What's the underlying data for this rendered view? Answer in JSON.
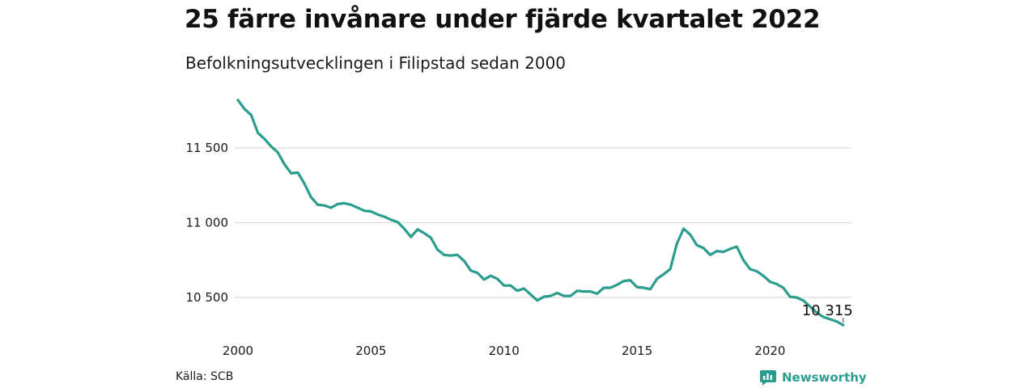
{
  "title": "25 färre invånare under fjärde kvartalet 2022",
  "subtitle": "Befolkningsutvecklingen i Filipstad sedan 2000",
  "source": "Källa: SCB",
  "brand": {
    "name": "Newsworthy",
    "icon": "newsworthy-logo-icon",
    "color": "#2a9d8f"
  },
  "chart_data": {
    "type": "line",
    "title": "25 färre invånare under fjärde kvartalet 2022",
    "subtitle": "Befolkningsutvecklingen i Filipstad sedan 2000",
    "xlim": [
      2000,
      2023.0
    ],
    "ylim": [
      10300,
      11850
    ],
    "x_ticks": [
      2000,
      2005,
      2010,
      2015,
      2020
    ],
    "x_tick_labels": [
      "2000",
      "2005",
      "2010",
      "2015",
      "2020"
    ],
    "y_ticks": [
      10500,
      11000,
      11500
    ],
    "y_tick_labels": [
      "10 500",
      "11 000",
      "11 500"
    ],
    "grid": "horizontal",
    "line_color": "#2a9d8f",
    "end_label": "10 315",
    "series": [
      {
        "x": [
          2000.0,
          2000.25,
          2000.5,
          2000.75,
          2001.0,
          2001.25,
          2001.5,
          2001.75,
          2002.0,
          2002.25,
          2002.5,
          2002.75,
          2003.0,
          2003.25,
          2003.5,
          2003.75,
          2004.0,
          2004.25,
          2004.5,
          2004.75,
          2005.0,
          2005.25,
          2005.5,
          2005.75,
          2006.0,
          2006.25,
          2006.5,
          2006.75,
          2007.0,
          2007.25,
          2007.5,
          2007.75,
          2008.0,
          2008.25,
          2008.5,
          2008.75,
          2009.0,
          2009.25,
          2009.5,
          2009.75,
          2010.0,
          2010.25,
          2010.5,
          2010.75,
          2011.0,
          2011.25,
          2011.5,
          2011.75,
          2012.0,
          2012.25,
          2012.5,
          2012.75,
          2013.0,
          2013.25,
          2013.5,
          2013.75,
          2014.0,
          2014.25,
          2014.5,
          2014.75,
          2015.0,
          2015.25,
          2015.5,
          2015.75,
          2016.0,
          2016.25,
          2016.5,
          2016.75,
          2017.0,
          2017.25,
          2017.5,
          2017.75,
          2018.0,
          2018.25,
          2018.5,
          2018.75,
          2019.0,
          2019.25,
          2019.5,
          2019.75,
          2020.0,
          2020.25,
          2020.5,
          2020.75,
          2021.0,
          2021.25,
          2021.5,
          2021.75,
          2022.0,
          2022.25,
          2022.5,
          2022.75
        ],
        "y": [
          11820,
          11760,
          11720,
          11600,
          11560,
          11510,
          11470,
          11390,
          11330,
          11335,
          11260,
          11170,
          11120,
          11115,
          11100,
          11125,
          11130,
          11120,
          11100,
          11080,
          11075,
          11055,
          11040,
          11020,
          11005,
          10960,
          10905,
          10955,
          10930,
          10900,
          10820,
          10785,
          10780,
          10785,
          10745,
          10680,
          10665,
          10620,
          10645,
          10625,
          10580,
          10580,
          10545,
          10560,
          10520,
          10480,
          10505,
          10510,
          10530,
          10510,
          10510,
          10545,
          10540,
          10540,
          10525,
          10565,
          10565,
          10585,
          10610,
          10615,
          10570,
          10565,
          10555,
          10625,
          10655,
          10690,
          10860,
          10960,
          10920,
          10850,
          10830,
          10785,
          10810,
          10805,
          10825,
          10840,
          10750,
          10690,
          10675,
          10645,
          10605,
          10590,
          10565,
          10505,
          10500,
          10480,
          10440,
          10400,
          10370,
          10355,
          10340,
          10315
        ]
      }
    ]
  }
}
